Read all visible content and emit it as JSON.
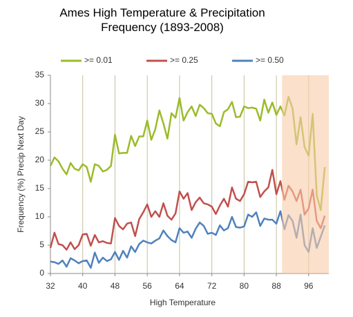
{
  "chart_data": {
    "type": "line",
    "title": "Ames High Temperature & Precipitation Frequency (1893-2008)",
    "x_label": "High Temperature",
    "y_label": "Frequency (%) Precip Next Day",
    "x": [
      32,
      33,
      34,
      35,
      36,
      37,
      38,
      39,
      40,
      41,
      42,
      43,
      44,
      45,
      46,
      47,
      48,
      49,
      50,
      51,
      52,
      53,
      54,
      55,
      56,
      57,
      58,
      59,
      60,
      61,
      62,
      63,
      64,
      65,
      66,
      67,
      68,
      69,
      70,
      71,
      72,
      73,
      74,
      75,
      76,
      77,
      78,
      79,
      80,
      81,
      82,
      83,
      84,
      85,
      86,
      87,
      88,
      89,
      90,
      91,
      92,
      93,
      94,
      95,
      96,
      97,
      98,
      99,
      100
    ],
    "series": [
      {
        "name": ">= 0.01",
        "color": "#9bbb2a",
        "values": [
          19,
          20.5,
          19.8,
          18.5,
          17.5,
          19.5,
          18.5,
          18.2,
          19.3,
          18.8,
          16.2,
          19.3,
          19,
          18,
          18.3,
          19,
          24.5,
          21.2,
          21.3,
          21.3,
          24.3,
          22.5,
          24.2,
          24.2,
          27,
          23.6,
          25.5,
          28.8,
          26.5,
          23.8,
          28.3,
          27.5,
          31,
          27,
          28.5,
          29.5,
          27.8,
          29.8,
          29.2,
          28.3,
          28.2,
          26.5,
          26,
          28.5,
          29,
          30.3,
          27.6,
          27.7,
          29.5,
          29.2,
          29.3,
          29.1,
          27,
          30.7,
          28.4,
          30.2,
          28,
          29.5,
          27.9,
          31.2,
          29.2,
          22.8,
          27.6,
          22.3,
          20.8,
          28.2,
          13.8,
          11.2,
          18.8
        ]
      },
      {
        "name": ">= 0.25",
        "color": "#c0504d",
        "values": [
          4.5,
          7.2,
          5.2,
          5,
          4.2,
          5.5,
          4.3,
          5,
          6.9,
          7,
          4.9,
          6.8,
          5.5,
          5.7,
          5.4,
          5.3,
          9.8,
          8.4,
          7.8,
          8.8,
          9,
          6.6,
          9.6,
          10.8,
          12.2,
          10,
          11,
          10,
          12.4,
          10.2,
          9.5,
          10.6,
          14.5,
          13.2,
          14.2,
          11.2,
          12.6,
          13.4,
          12.4,
          12.2,
          11.8,
          10.5,
          12,
          13.2,
          11.8,
          15.2,
          13.2,
          12.8,
          14,
          16.2,
          16.1,
          16.2,
          13.5,
          14.5,
          15.2,
          18.3,
          14,
          16.3,
          13,
          15.5,
          14.5,
          12.8,
          14.8,
          10.4,
          11.5,
          14.8,
          9.3,
          8,
          10.2
        ]
      },
      {
        "name": ">= 0.50",
        "color": "#4f81bd",
        "values": [
          2.1,
          2,
          1.7,
          2.3,
          1.2,
          2.7,
          2.3,
          1.8,
          2.2,
          2.3,
          1,
          3.7,
          1.9,
          2.8,
          2.2,
          2.5,
          3.8,
          2.4,
          4,
          2.8,
          4.8,
          3.8,
          5.2,
          5.8,
          5.5,
          5.3,
          5.8,
          6.2,
          7.6,
          6.6,
          5.9,
          5.5,
          8,
          7.2,
          7.4,
          6.3,
          7.9,
          9,
          8.4,
          7,
          7.2,
          6.8,
          8.5,
          7.6,
          8,
          10,
          8.2,
          8.1,
          8.3,
          10.4,
          10,
          10.8,
          8.4,
          9.7,
          9.5,
          9.5,
          8.8,
          11,
          7.8,
          10.3,
          9.3,
          6.3,
          10.4,
          5,
          3.8,
          8,
          4.5,
          6.5,
          8.5
        ]
      }
    ],
    "xlim": [
      32,
      101
    ],
    "xticks": [
      32,
      40,
      48,
      56,
      64,
      72,
      80,
      88,
      96
    ],
    "ylim": [
      0,
      35
    ],
    "yticks": [
      0,
      5,
      10,
      15,
      20,
      25,
      30,
      35
    ],
    "grid": "x",
    "legend": "top",
    "highlight_range": [
      89.4,
      101
    ],
    "highlight_color": "#f8cba8"
  }
}
